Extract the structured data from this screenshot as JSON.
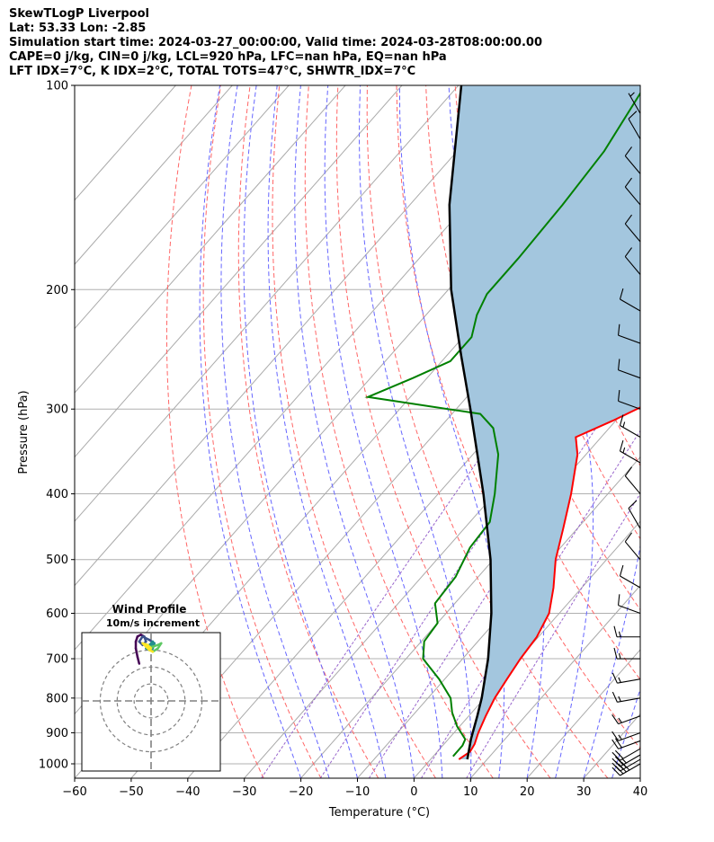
{
  "header": {
    "line1": "SkewTLogP Liverpool",
    "line2": "Lat: 53.33   Lon: -2.85",
    "line3": "Simulation start time: 2024-03-27_00:00:00, Valid time: 2024-03-28T08:00:00.00",
    "line4": "CAPE=0 j/kg, CIN=0 j/kg, LCL=920 hPa, LFC=nan hPa, EQ=nan hPa",
    "line5": "LFT IDX=7°C, K IDX=2°C, TOTAL TOTS=47°C, SHWTR_IDX=7°C"
  },
  "colors": {
    "temperature": "#ff0000",
    "dewpoint": "#008000",
    "parcel": "#000000",
    "fill": "#a3c6de",
    "dry_adiabat": "#ff6666",
    "moist_adiabat": "#6666ff",
    "mixing_ratio": "#9966cc",
    "isotherm": "#aaaaaa"
  },
  "chart_data": {
    "type": "skewt",
    "xlabel": "Temperature (°C)",
    "ylabel": "Pressure (hPa)",
    "xlim": [
      -60,
      40
    ],
    "ylim": [
      1050,
      100
    ],
    "xticks": [
      "−60",
      "−50",
      "−40",
      "−30",
      "−20",
      "−10",
      "0",
      "10",
      "20",
      "30",
      "40"
    ],
    "yticks": [
      "1000",
      "900",
      "800",
      "700",
      "600",
      "500",
      "400",
      "300",
      "200",
      "100"
    ],
    "grid": true,
    "temperature_profile": [
      {
        "p": 985,
        "t": 5.0
      },
      {
        "p": 960,
        "t": 5.8
      },
      {
        "p": 935,
        "t": 5.4
      },
      {
        "p": 900,
        "t": 4.3
      },
      {
        "p": 850,
        "t": 3.0
      },
      {
        "p": 800,
        "t": 1.8
      },
      {
        "p": 750,
        "t": 1.0
      },
      {
        "p": 700,
        "t": 0.2
      },
      {
        "p": 650,
        "t": -0.3
      },
      {
        "p": 600,
        "t": -1.8
      },
      {
        "p": 550,
        "t": -5.0
      },
      {
        "p": 500,
        "t": -9.0
      },
      {
        "p": 450,
        "t": -12.5
      },
      {
        "p": 400,
        "t": -16.5
      },
      {
        "p": 350,
        "t": -21.5
      },
      {
        "p": 330,
        "t": -24.5
      },
      {
        "p": 312,
        "t": -20.5
      },
      {
        "p": 290,
        "t": -16.0
      },
      {
        "p": 270,
        "t": -13.5
      },
      {
        "p": 250,
        "t": -13.5
      },
      {
        "p": 220,
        "t": -14.0
      },
      {
        "p": 190,
        "t": -15.5
      },
      {
        "p": 170,
        "t": -18.0
      },
      {
        "p": 150,
        "t": -23.0
      },
      {
        "p": 130,
        "t": -29.5
      },
      {
        "p": 115,
        "t": -34.5
      },
      {
        "p": 100,
        "t": -40.5
      }
    ],
    "dewpoint_profile": [
      {
        "p": 975,
        "t": 3.5
      },
      {
        "p": 940,
        "t": 3.5
      },
      {
        "p": 920,
        "t": 3.0
      },
      {
        "p": 880,
        "t": -0.5
      },
      {
        "p": 840,
        "t": -3.5
      },
      {
        "p": 800,
        "t": -6.0
      },
      {
        "p": 750,
        "t": -11.0
      },
      {
        "p": 700,
        "t": -17.0
      },
      {
        "p": 660,
        "t": -19.5
      },
      {
        "p": 620,
        "t": -20.0
      },
      {
        "p": 580,
        "t": -23.5
      },
      {
        "p": 530,
        "t": -24.0
      },
      {
        "p": 480,
        "t": -26.0
      },
      {
        "p": 440,
        "t": -26.5
      },
      {
        "p": 400,
        "t": -30.0
      },
      {
        "p": 350,
        "t": -35.5
      },
      {
        "p": 320,
        "t": -40.5
      },
      {
        "p": 305,
        "t": -45.0
      },
      {
        "p": 288,
        "t": -67.5
      },
      {
        "p": 270,
        "t": -62.5
      },
      {
        "p": 255,
        "t": -58.5
      },
      {
        "p": 235,
        "t": -58.5
      },
      {
        "p": 218,
        "t": -61.0
      },
      {
        "p": 203,
        "t": -62.5
      },
      {
        "p": 180,
        "t": -62.5
      },
      {
        "p": 150,
        "t": -63.0
      },
      {
        "p": 125,
        "t": -64.0
      },
      {
        "p": 100,
        "t": -67.0
      }
    ],
    "parcel_profile": [
      {
        "p": 985,
        "t": 6.5
      },
      {
        "p": 920,
        "t": 4.0
      },
      {
        "p": 850,
        "t": 1.5
      },
      {
        "p": 800,
        "t": -0.5
      },
      {
        "p": 700,
        "t": -5.5
      },
      {
        "p": 600,
        "t": -12.0
      },
      {
        "p": 500,
        "t": -20.5
      },
      {
        "p": 400,
        "t": -32.0
      },
      {
        "p": 300,
        "t": -47.5
      },
      {
        "p": 250,
        "t": -57.5
      },
      {
        "p": 200,
        "t": -69.5
      },
      {
        "p": 150,
        "t": -83.0
      },
      {
        "p": 100,
        "t": -99.5
      }
    ],
    "wind_barbs": [
      {
        "p": 1000,
        "speed_kt": 40,
        "dir": 240
      },
      {
        "p": 985,
        "speed_kt": 30,
        "dir": 240
      },
      {
        "p": 970,
        "speed_kt": 25,
        "dir": 240
      },
      {
        "p": 950,
        "speed_kt": 20,
        "dir": 240
      },
      {
        "p": 925,
        "speed_kt": 20,
        "dir": 250
      },
      {
        "p": 900,
        "speed_kt": 15,
        "dir": 250
      },
      {
        "p": 850,
        "speed_kt": 15,
        "dir": 250
      },
      {
        "p": 800,
        "speed_kt": 15,
        "dir": 260
      },
      {
        "p": 750,
        "speed_kt": 15,
        "dir": 260
      },
      {
        "p": 700,
        "speed_kt": 15,
        "dir": 270
      },
      {
        "p": 650,
        "speed_kt": 15,
        "dir": 270
      },
      {
        "p": 600,
        "speed_kt": 10,
        "dir": 290
      },
      {
        "p": 550,
        "speed_kt": 10,
        "dir": 300
      },
      {
        "p": 500,
        "speed_kt": 10,
        "dir": 320
      },
      {
        "p": 450,
        "speed_kt": 10,
        "dir": 330
      },
      {
        "p": 400,
        "speed_kt": 10,
        "dir": 320
      },
      {
        "p": 360,
        "speed_kt": 15,
        "dir": 300
      },
      {
        "p": 330,
        "speed_kt": 15,
        "dir": 300
      },
      {
        "p": 300,
        "speed_kt": 10,
        "dir": 290
      },
      {
        "p": 270,
        "speed_kt": 10,
        "dir": 290
      },
      {
        "p": 240,
        "speed_kt": 10,
        "dir": 290
      },
      {
        "p": 215,
        "speed_kt": 10,
        "dir": 300
      },
      {
        "p": 190,
        "speed_kt": 10,
        "dir": 320
      },
      {
        "p": 170,
        "speed_kt": 10,
        "dir": 320
      },
      {
        "p": 150,
        "speed_kt": 10,
        "dir": 320
      },
      {
        "p": 135,
        "speed_kt": 10,
        "dir": 320
      },
      {
        "p": 120,
        "speed_kt": 10,
        "dir": 330
      },
      {
        "p": 110,
        "speed_kt": 5,
        "dir": 330
      }
    ],
    "inset": {
      "title": "Wind Profile",
      "subtitle": "10m/s increment",
      "type": "hodograph",
      "rings_ms": [
        10,
        20,
        30
      ],
      "range_ms": 40,
      "hodograph": [
        {
          "u": -7,
          "v": 22
        },
        {
          "u": -8,
          "v": 26
        },
        {
          "u": -9,
          "v": 31
        },
        {
          "u": -9,
          "v": 35
        },
        {
          "u": -8,
          "v": 38
        },
        {
          "u": -6,
          "v": 39
        },
        {
          "u": -4,
          "v": 38
        },
        {
          "u": -3,
          "v": 35
        },
        {
          "u": -5,
          "v": 33
        },
        {
          "u": -7,
          "v": 35
        },
        {
          "u": -5,
          "v": 38
        },
        {
          "u": -1,
          "v": 36
        },
        {
          "u": 2,
          "v": 34
        },
        {
          "u": 1,
          "v": 31
        },
        {
          "u": -1,
          "v": 30
        },
        {
          "u": -3,
          "v": 31
        },
        {
          "u": -1,
          "v": 33
        },
        {
          "u": 1,
          "v": 35
        },
        {
          "u": 0,
          "v": 32
        },
        {
          "u": -2,
          "v": 31
        },
        {
          "u": 1,
          "v": 32
        },
        {
          "u": 4,
          "v": 33
        },
        {
          "u": 6,
          "v": 34
        },
        {
          "u": 4,
          "v": 31
        },
        {
          "u": 1,
          "v": 29
        },
        {
          "u": -1,
          "v": 30
        },
        {
          "u": -3,
          "v": 32
        },
        {
          "u": -5,
          "v": 34
        },
        {
          "u": -2,
          "v": 33
        },
        {
          "u": 0,
          "v": 31
        },
        {
          "u": -2,
          "v": 32
        },
        {
          "u": -4,
          "v": 33
        }
      ]
    }
  }
}
